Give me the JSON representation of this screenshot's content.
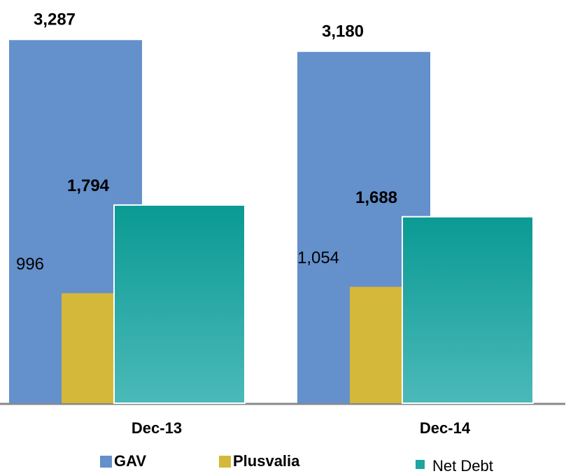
{
  "chart_data": {
    "type": "bar",
    "categories": [
      "Dec-13",
      "Dec-14"
    ],
    "series": [
      {
        "name": "GAV",
        "color": "#6490cc",
        "values": [
          3287,
          3180
        ],
        "value_labels": [
          "3,287",
          "3,180"
        ]
      },
      {
        "name": "Plusvalia",
        "color": "#d4b83a",
        "values": [
          996,
          1054
        ],
        "value_labels": [
          "996",
          "1,054"
        ]
      },
      {
        "name": "Net Debt",
        "color": "#1ea59f",
        "values": [
          1794,
          1688
        ],
        "value_labels": [
          "1,794",
          "1,688"
        ]
      }
    ],
    "ylim": [
      0,
      3650
    ]
  }
}
